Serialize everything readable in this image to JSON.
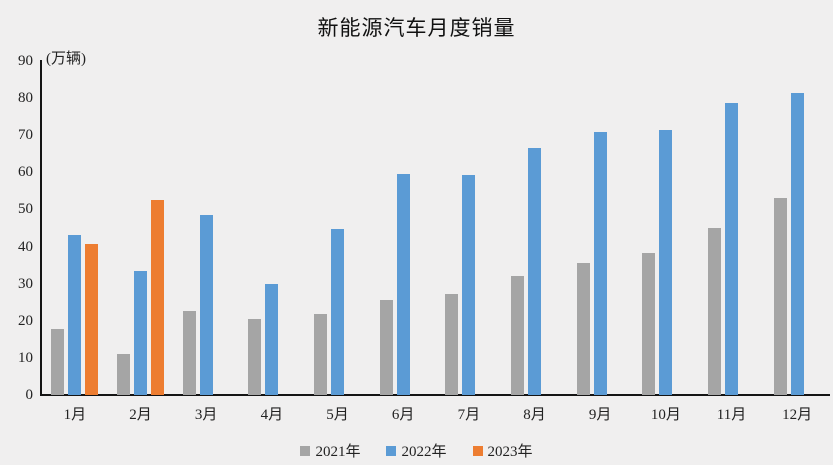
{
  "title": "新能源汽车月度销量",
  "y_axis_unit": "(万辆)",
  "chart_data": {
    "type": "bar",
    "title": "新能源汽车月度销量",
    "ylabel": "(万辆)",
    "xlabel": "",
    "ylim": [
      0,
      90
    ],
    "yticks": [
      0,
      10,
      20,
      30,
      40,
      50,
      60,
      70,
      80,
      90
    ],
    "grid": false,
    "legend_position": "bottom",
    "categories": [
      "1月",
      "2月",
      "3月",
      "4月",
      "5月",
      "6月",
      "7月",
      "8月",
      "9月",
      "10月",
      "11月",
      "12月"
    ],
    "series": [
      {
        "name": "2021年",
        "color": "#a5a5a5",
        "values": [
          17.9,
          11.0,
          22.6,
          20.6,
          21.7,
          25.6,
          27.1,
          32.1,
          35.7,
          38.3,
          45.0,
          53.1
        ]
      },
      {
        "name": "2022年",
        "color": "#5b9bd5",
        "values": [
          43.1,
          33.4,
          48.4,
          29.9,
          44.7,
          59.6,
          59.3,
          66.6,
          70.8,
          71.4,
          78.6,
          81.4
        ]
      },
      {
        "name": "2023年",
        "color": "#ed7d31",
        "values": [
          40.8,
          52.5,
          null,
          null,
          null,
          null,
          null,
          null,
          null,
          null,
          null,
          null
        ]
      }
    ]
  }
}
